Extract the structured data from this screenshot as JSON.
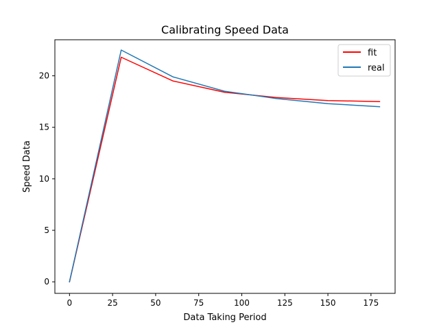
{
  "chart_data": {
    "type": "line",
    "title": "Calibrating Speed Data",
    "xlabel": "Data Taking Period",
    "ylabel": "Speed Data",
    "xlim": [
      -8.5,
      189
    ],
    "ylim": [
      -1.12,
      23.5
    ],
    "xticks": [
      0,
      25,
      50,
      75,
      100,
      125,
      150,
      175
    ],
    "yticks": [
      0,
      5,
      10,
      15,
      20
    ],
    "grid": false,
    "legend_position": "top-right",
    "series": [
      {
        "name": "fit",
        "color": "#ff0000",
        "x": [
          0,
          30,
          60,
          90,
          120,
          150,
          180
        ],
        "y": [
          0,
          21.8,
          19.5,
          18.4,
          17.9,
          17.6,
          17.5
        ]
      },
      {
        "name": "real",
        "color": "#1f77b4",
        "x": [
          0,
          30,
          60,
          90,
          120,
          150,
          180
        ],
        "y": [
          0,
          22.5,
          19.9,
          18.5,
          17.8,
          17.3,
          17.0
        ]
      }
    ]
  }
}
